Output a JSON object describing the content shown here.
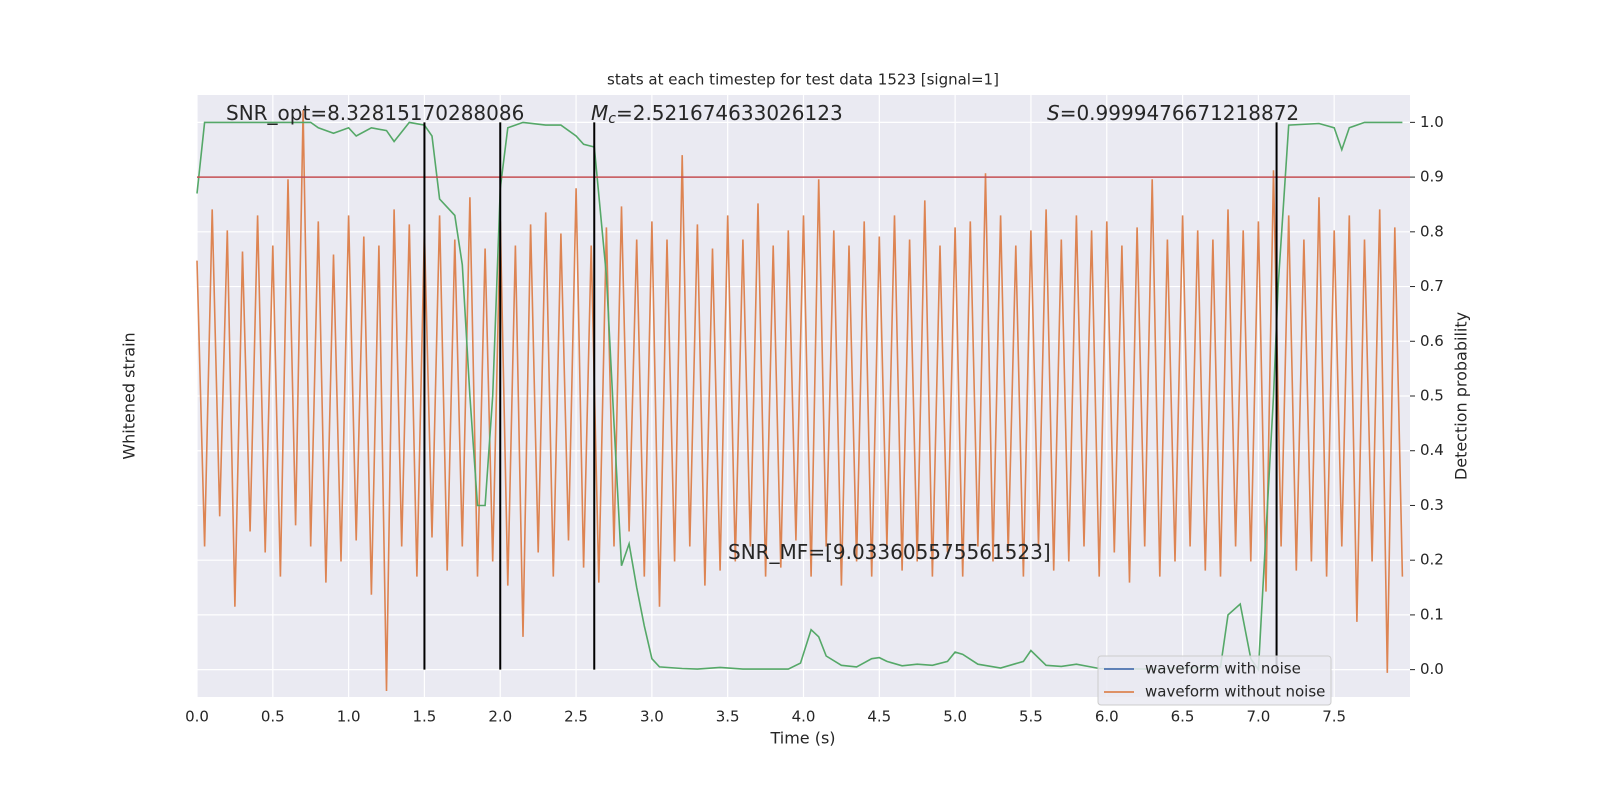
{
  "chart_data": {
    "type": "line",
    "title": "stats at each timestep for test data 1523 [signal=1]",
    "xlabel": "Time (s)",
    "ylabel": "Whitened strain",
    "y2label": "Detection probability",
    "xlim": [
      0,
      8
    ],
    "xticks": [
      {
        "value": 0,
        "label": "0.0"
      },
      0.5,
      {
        "value": 1,
        "label": "1.0"
      },
      1.5,
      {
        "value": 2,
        "label": "2.0"
      },
      2.5,
      {
        "value": 3,
        "label": "3.0"
      },
      3.5,
      {
        "value": 4,
        "label": "4.0"
      },
      4.5,
      {
        "value": 5,
        "label": "5.0"
      },
      5.5,
      {
        "value": 6,
        "label": "6.0"
      },
      6.5,
      {
        "value": 7,
        "label": "7.0"
      },
      7.5
    ],
    "ylim": [
      -1,
      1
    ],
    "y2lim": [
      -0.05,
      1.05
    ],
    "y2ticks": [
      {
        "value": 0,
        "label": "0.0"
      },
      0.1,
      0.2,
      0.3,
      0.4,
      0.5,
      0.6,
      0.7,
      0.8,
      0.9,
      {
        "value": 1,
        "label": "1.0"
      }
    ],
    "grid": true,
    "series": [
      {
        "color": "#dd8452",
        "axis": "y",
        "x": [
          0,
          0.05,
          0.1,
          0.15,
          0.2,
          0.25,
          0.3,
          0.35,
          0.4,
          0.45,
          0.5,
          0.55,
          0.6,
          0.65,
          0.7,
          0.75,
          0.8,
          0.85,
          0.9,
          0.95,
          1,
          1.05,
          1.1,
          1.15,
          1.2,
          1.25,
          1.3,
          1.35,
          1.4,
          1.45,
          1.5,
          1.55,
          1.6,
          1.65,
          1.7,
          1.75,
          1.8,
          1.85,
          1.9,
          1.95,
          2,
          2.05,
          2.1,
          2.15,
          2.2,
          2.25,
          2.3,
          2.35,
          2.4,
          2.45,
          2.5,
          2.55,
          2.6,
          2.65,
          2.7,
          2.75,
          2.8,
          2.85,
          2.9,
          2.95,
          3,
          3.05,
          3.1,
          3.15,
          3.2,
          3.25,
          3.3,
          3.35,
          3.4,
          3.45,
          3.5,
          3.55,
          3.6,
          3.65,
          3.7,
          3.75,
          3.8,
          3.85,
          3.9,
          3.95,
          4,
          4.05,
          4.1,
          4.15,
          4.2,
          4.25,
          4.3,
          4.35,
          4.4,
          4.45,
          4.5,
          4.55,
          4.6,
          4.65,
          4.7,
          4.75,
          4.8,
          4.85,
          4.9,
          4.95,
          5,
          5.05,
          5.1,
          5.15,
          5.2,
          5.25,
          5.3,
          5.35,
          5.4,
          5.45,
          5.5,
          5.55,
          5.6,
          5.65,
          5.7,
          5.75,
          5.8,
          5.85,
          5.9,
          5.95,
          6,
          6.05,
          6.1,
          6.15,
          6.2,
          6.25,
          6.3,
          6.35,
          6.4,
          6.45,
          6.5,
          6.55,
          6.6,
          6.65,
          6.7,
          6.75,
          6.8,
          6.85,
          6.9,
          6.95,
          7,
          7.05,
          7.1,
          7.15,
          7.2,
          7.25,
          7.3,
          7.35,
          7.4,
          7.45,
          7.5,
          7.55,
          7.6,
          7.65,
          7.7,
          7.75,
          7.8,
          7.85,
          7.9,
          7.95
        ],
        "values": [
          0.45,
          -0.5,
          0.62,
          -0.4,
          0.55,
          -0.7,
          0.48,
          -0.45,
          0.6,
          -0.52,
          0.5,
          -0.6,
          0.72,
          -0.43,
          0.95,
          -0.5,
          0.58,
          -0.62,
          0.47,
          -0.55,
          0.6,
          -0.48,
          0.53,
          -0.66,
          0.5,
          -0.98,
          0.62,
          -0.5,
          0.57,
          -0.6,
          0.55,
          -0.47,
          0.6,
          -0.58,
          0.52,
          -0.5,
          0.66,
          -0.6,
          0.49,
          -0.55,
          0.58,
          -0.63,
          0.5,
          -0.8,
          0.57,
          -0.52,
          0.61,
          -0.6,
          0.54,
          -0.48,
          0.69,
          -0.57,
          0.5,
          -0.62,
          0.56,
          -0.5,
          0.63,
          -0.45,
          0.52,
          -0.6,
          0.58,
          -0.7,
          0.52,
          -0.55,
          0.8,
          -0.5,
          0.57,
          -0.63,
          0.49,
          -0.58,
          0.6,
          -0.55,
          0.52,
          -0.5,
          0.64,
          -0.6,
          0.5,
          -0.57,
          0.55,
          -0.48,
          0.6,
          -0.6,
          0.72,
          -0.5,
          0.55,
          -0.63,
          0.5,
          -0.55,
          0.58,
          -0.6,
          0.53,
          -0.5,
          0.6,
          -0.58,
          0.52,
          -0.55,
          0.65,
          -0.6,
          0.5,
          -0.52,
          0.56,
          -0.6,
          0.58,
          -0.5,
          0.74,
          -0.55,
          0.6,
          -0.52,
          0.5,
          -0.6,
          0.55,
          -0.5,
          0.62,
          -0.58,
          0.52,
          -0.55,
          0.6,
          -0.5,
          0.55,
          -0.6,
          0.58,
          -0.52,
          0.5,
          -0.62,
          0.56,
          -0.5,
          0.72,
          -0.6,
          0.52,
          -0.55,
          0.6,
          -0.5,
          0.55,
          -0.58,
          0.52,
          -0.6,
          0.62,
          -0.5,
          0.55,
          -0.55,
          0.58,
          -0.65,
          0.75,
          -0.5,
          0.6,
          -0.58,
          0.52,
          -0.55,
          0.66,
          -0.6,
          0.55,
          -0.5,
          0.6,
          -0.75,
          0.52,
          -0.55,
          0.62,
          -0.92,
          0.56,
          -0.6
        ]
      },
      {
        "color": "#55a868",
        "axis": "y2",
        "x": [
          0,
          0.05,
          0.3,
          0.6,
          0.75,
          0.8,
          0.9,
          1,
          1.05,
          1.15,
          1.25,
          1.3,
          1.4,
          1.5,
          1.55,
          1.6,
          1.7,
          1.75,
          1.8,
          1.85,
          1.9,
          1.95,
          2,
          2.05,
          2.15,
          2.3,
          2.4,
          2.5,
          2.55,
          2.62,
          2.7,
          2.75,
          2.8,
          2.85,
          2.9,
          2.95,
          3,
          3.05,
          3.2,
          3.3,
          3.45,
          3.6,
          3.9,
          3.98,
          4.05,
          4.1,
          4.15,
          4.25,
          4.35,
          4.45,
          4.5,
          4.55,
          4.65,
          4.75,
          4.85,
          4.95,
          5,
          5.05,
          5.15,
          5.3,
          5.45,
          5.5,
          5.6,
          5.7,
          5.8,
          5.95,
          6.3,
          6.75,
          6.8,
          6.88,
          6.95,
          7,
          7.1,
          7.13,
          7.2,
          7.4,
          7.5,
          7.55,
          7.6,
          7.7,
          7.95
        ],
        "values": [
          0.87,
          1,
          1,
          1,
          1,
          0.99,
          0.98,
          0.99,
          0.975,
          0.99,
          0.985,
          0.965,
          1,
          0.995,
          0.975,
          0.86,
          0.83,
          0.74,
          0.5,
          0.3,
          0.3,
          0.5,
          0.88,
          0.99,
          1,
          0.995,
          0.995,
          0.975,
          0.96,
          0.955,
          0.72,
          0.45,
          0.19,
          0.23,
          0.15,
          0.08,
          0.02,
          0.005,
          0.002,
          0.001,
          0.004,
          0.001,
          0.001,
          0.012,
          0.073,
          0.06,
          0.025,
          0.008,
          0.005,
          0.02,
          0.022,
          0.015,
          0.007,
          0.01,
          0.008,
          0.015,
          0.032,
          0.028,
          0.01,
          0.003,
          0.015,
          0.035,
          0.008,
          0.006,
          0.01,
          0.002,
          0.001,
          0.005,
          0.1,
          0.12,
          0.02,
          0,
          0.5,
          0.7,
          0.995,
          0.998,
          0.99,
          0.95,
          0.99,
          1,
          1
        ]
      }
    ],
    "hline": {
      "value": 0.9,
      "color": "#c44e52",
      "axis": "y2"
    },
    "vlines": {
      "x": [
        1.5,
        2.0,
        2.62,
        7.12
      ],
      "range": [
        0,
        1
      ],
      "color": "#000000",
      "axis": "y2"
    },
    "annotations": [
      {
        "text": "SNR_opt=8.32815170288086"
      },
      {
        "italic": "M",
        "sub": "c",
        "text": "=2.521674633026123"
      },
      {
        "italic": "S",
        "text": "=0.9999476671218872"
      },
      {
        "text": "SNR_MF=[9.033605575561523]"
      }
    ],
    "legend": {
      "position": "lower right",
      "entries": [
        {
          "name": "waveform with noise",
          "color": "#4c72b0"
        },
        {
          "name": "waveform without noise",
          "color": "#dd8452"
        }
      ]
    }
  }
}
